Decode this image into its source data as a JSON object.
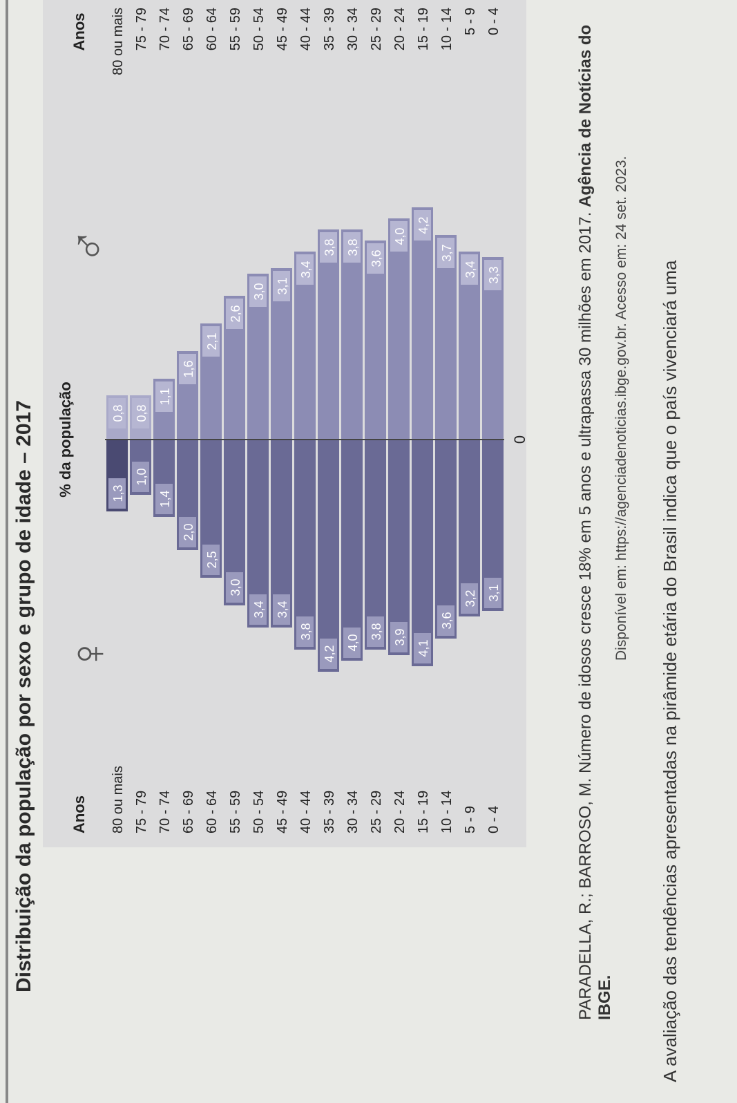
{
  "title": "Distribuição da população por sexo e grupo de idade – 2017",
  "chart_data": {
    "type": "bar",
    "orientation": "population-pyramid",
    "ylabel_left": "Anos",
    "ylabel_right": "Anos",
    "xlabel": "% da população",
    "zero_label": "0",
    "female_symbol": "♀",
    "male_symbol": "♂",
    "categories": [
      "80 ou mais",
      "75 - 79",
      "70 - 74",
      "65 - 69",
      "60 - 64",
      "55 - 59",
      "50 - 54",
      "45 - 49",
      "40 - 44",
      "35 - 39",
      "30 - 34",
      "25 - 29",
      "20 - 24",
      "15 - 19",
      "10 - 14",
      "5 - 9",
      "0 - 4"
    ],
    "series": [
      {
        "side": "female",
        "values": [
          1.3,
          1.0,
          1.4,
          2.0,
          2.5,
          3.0,
          3.4,
          3.4,
          3.8,
          4.2,
          4.0,
          3.8,
          3.9,
          4.1,
          3.6,
          3.2,
          3.1
        ],
        "labels": [
          "1,3",
          "1,0",
          "1,4",
          "2,0",
          "2,5",
          "3,0",
          "3,4",
          "3,4",
          "3,8",
          "4,2",
          "4,0",
          "3,8",
          "3,9",
          "4,1",
          "3,6",
          "3,2",
          "3,1"
        ]
      },
      {
        "side": "male",
        "values": [
          0.8,
          0.8,
          1.1,
          1.6,
          2.1,
          2.6,
          3.0,
          3.1,
          3.4,
          3.8,
          3.8,
          3.6,
          4.0,
          4.2,
          3.7,
          3.4,
          3.3
        ],
        "labels": [
          "0,8",
          "0,8",
          "1,1",
          "1,6",
          "2,1",
          "2,6",
          "3,0",
          "3,1",
          "3,4",
          "3,8",
          "3,8",
          "3,6",
          "4,0",
          "4,2",
          "3,7",
          "3,4",
          "3,3"
        ]
      }
    ],
    "colors": {
      "female_dark": "#4a4a72",
      "female_mid": "#6a6a95",
      "male_bar": "#8c8cb4",
      "male_light": "#a9a9c9",
      "background": "#dcdcdd"
    }
  },
  "caption": {
    "text": "PARADELLA, R.; BARROSO, M. Número de idosos cresce 18% em 5 anos e ultrapassa 30 milhões em 2017.",
    "source": "Agência de Notícias do IBGE."
  },
  "available": "Disponível em: https://agenciadenoticias.ibge.gov.br. Acesso em: 24 set. 2023.",
  "question": "A avaliação das tendências apresentadas na pirâmide etária do Brasil indica que o país vivenciará uma"
}
